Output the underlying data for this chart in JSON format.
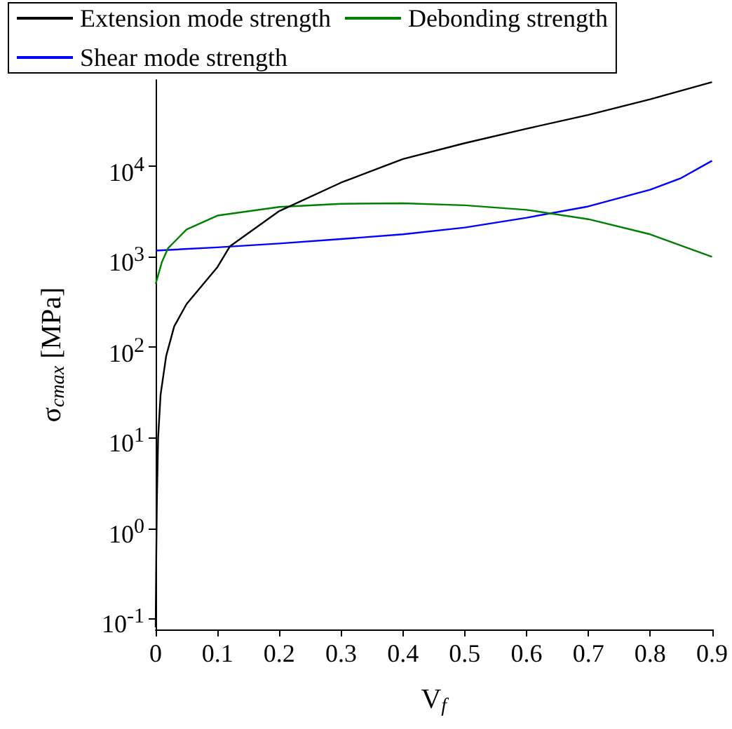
{
  "chart_data": {
    "type": "line",
    "xlabel": "V$_{f}$",
    "ylabel": "σ$_{cmax}$ [MPa]",
    "log": "y",
    "grid": false,
    "legend": "top",
    "marker": "none",
    "line_style": "solid",
    "xlim": [
      0,
      0.9
    ],
    "xticks": [
      0,
      0.1,
      0.2,
      0.3,
      0.4,
      0.5,
      0.6,
      0.7,
      0.8,
      0.9
    ],
    "ylim": [
      0.076,
      90000
    ],
    "yticks": [
      {
        "value": 0.1,
        "label": "10$^{-1}$"
      },
      {
        "value": 1,
        "label": "10$^{0}$"
      },
      {
        "value": 10,
        "label": "10$^{1}$"
      },
      {
        "value": 100,
        "label": "10$^{2}$"
      },
      {
        "value": 1000,
        "label": "10$^{3}$"
      },
      {
        "value": 10000,
        "label": "10$^{4}$"
      }
    ],
    "series": [
      {
        "name": "Extension mode strength",
        "color": "#000000",
        "x": [
          0,
          0.001,
          0.002,
          0.004,
          0.008,
          0.017,
          0.03,
          0.05,
          0.1,
          0.12,
          0.2,
          0.3,
          0.4,
          0.5,
          0.6,
          0.7,
          0.8,
          0.9
        ],
        "values": [
          0.08,
          0.5,
          2,
          10,
          30,
          80,
          170,
          300,
          770,
          1300,
          3200,
          6600,
          12000,
          18000,
          26000,
          37000,
          55000,
          85000
        ]
      },
      {
        "name": "Debonding strength",
        "color": "#008000",
        "x": [
          0,
          0.01,
          0.02,
          0.05,
          0.1,
          0.2,
          0.3,
          0.4,
          0.5,
          0.6,
          0.7,
          0.8,
          0.9
        ],
        "values": [
          500,
          870,
          1240,
          2000,
          2850,
          3550,
          3850,
          3900,
          3700,
          3300,
          2600,
          1770,
          1000
        ]
      },
      {
        "name": "Shear mode strength",
        "color": "#0000ff",
        "x": [
          0,
          0.1,
          0.2,
          0.3,
          0.4,
          0.5,
          0.6,
          0.7,
          0.8,
          0.85,
          0.9
        ],
        "values": [
          1170,
          1270,
          1400,
          1570,
          1770,
          2100,
          2700,
          3600,
          5500,
          7400,
          11500
        ]
      }
    ]
  }
}
